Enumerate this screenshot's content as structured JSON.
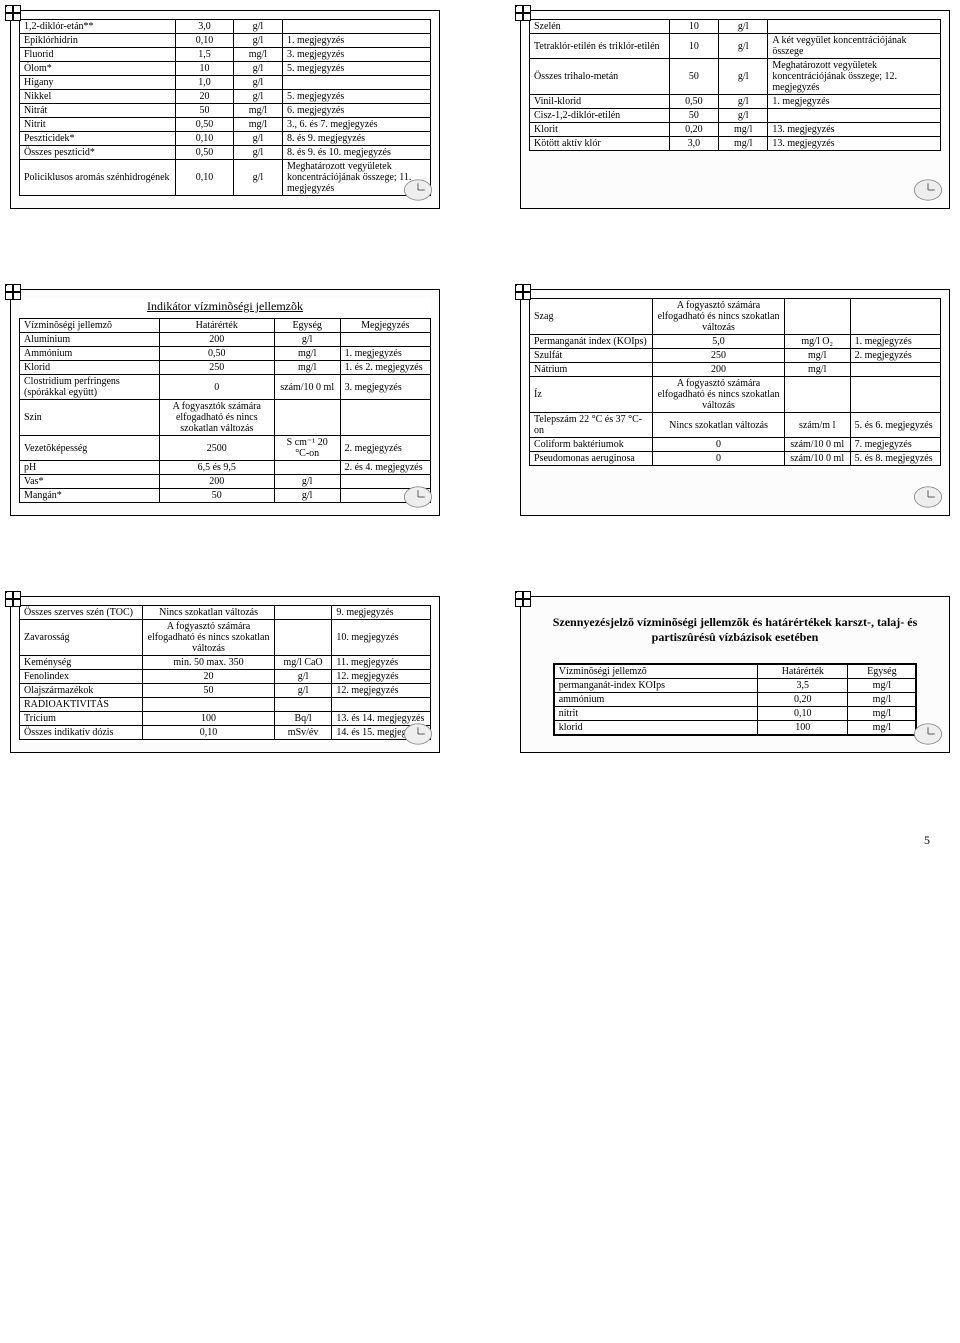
{
  "pageNumber": "5",
  "slides": {
    "s1": {
      "rows": [
        [
          "1,2-diklór-etán**",
          "3,0",
          "g/l",
          ""
        ],
        [
          "Epiklórhidrin",
          "0,10",
          "g/l",
          "1. megjegyzés"
        ],
        [
          "Fluorid",
          "1,5",
          "mg/l",
          "3. megjegyzés"
        ],
        [
          "Ólom*",
          "10",
          "g/l",
          "5. megjegyzés"
        ],
        [
          "Higany",
          "1,0",
          "g/l",
          ""
        ],
        [
          "Nikkel",
          "20",
          "g/l",
          "5. megjegyzés"
        ],
        [
          "Nitrát",
          "50",
          "mg/l",
          "6. megjegyzés"
        ],
        [
          "Nitrit",
          "0,50",
          "mg/l",
          "3., 6. és 7. megjegyzés"
        ],
        [
          "Peszticidek*",
          "0,10",
          "g/l",
          "8. és 9. megjegyzés"
        ],
        [
          "Összes peszticid*",
          "0,50",
          "g/l",
          "8. és 9. és 10. megjegyzés"
        ],
        [
          "Policiklusos aromás szénhidrogének",
          "0,10",
          "g/l",
          "Meghatározott vegyületek koncentrációjának összege; 11. megjegyzés"
        ]
      ]
    },
    "s2": {
      "rows": [
        [
          "Szelén",
          "10",
          "g/l",
          ""
        ],
        [
          "Tetraklór-etilén és triklór-etilén",
          "10",
          "g/l",
          "A két vegyület koncentrációjának összege"
        ],
        [
          "Összes trihalo-metán",
          "50",
          "g/l",
          "Meghatározott vegyületek koncentrációjának összege; 12. megjegyzés"
        ],
        [
          "Vinil-klorid",
          "0,50",
          "g/l",
          "1. megjegyzés"
        ],
        [
          "Cisz-1,2-diklór-etilén",
          "50",
          "g/l",
          ""
        ],
        [
          "Klorit",
          "0,20",
          "mg/l",
          "13. megjegyzés"
        ],
        [
          "Kötött aktív klór",
          "3,0",
          "mg/l",
          "13. megjegyzés"
        ]
      ]
    },
    "s3": {
      "title": "Indikátor vízminõségi jellemzõk",
      "header": [
        "Vízminõségi jellemzõ",
        "Határérték",
        "Egység",
        "Megjegyzés"
      ],
      "rows": [
        [
          "Alumínium",
          "200",
          "g/l",
          ""
        ],
        [
          "Ammónium",
          "0,50",
          "mg/l",
          "1. megjegyzés"
        ],
        [
          "Klorid",
          "250",
          "mg/l",
          "1. és 2. megjegyzés"
        ],
        [
          "Clostridium perfringens (spórákkal együtt)",
          "0",
          "szám/10 0 ml",
          "3. megjegyzés"
        ],
        [
          "Szín",
          "A fogyasztók számára elfogadható és nincs szokatlan változás",
          "",
          ""
        ],
        [
          "Vezetõképesség",
          "2500",
          "S cm⁻¹ 20 °C-on",
          "2. megjegyzés"
        ],
        [
          "pH",
          "6,5 és 9,5",
          "",
          "2. és 4. megjegyzés"
        ],
        [
          "Vas*",
          "200",
          "g/l",
          ""
        ],
        [
          "Mangán*",
          "50",
          "g/l",
          ""
        ]
      ]
    },
    "s4": {
      "rows": [
        [
          "Szag",
          "A fogyasztó számára elfogadható és nincs szokatlan változás",
          "",
          ""
        ],
        [
          "Permanganát index (KOIps)",
          "5,0",
          "mg/l O₂",
          "1. megjegyzés"
        ],
        [
          "Szulfát",
          "250",
          "mg/l",
          "2. megjegyzés"
        ],
        [
          "Nátrium",
          "200",
          "mg/l",
          ""
        ],
        [
          "Íz",
          "A fogyasztó számára elfogadható és nincs szokatlan változás",
          "",
          ""
        ],
        [
          "Telepszám 22 °C és 37 °C-on",
          "Nincs szokatlan változás",
          "szám/m l",
          "5. és 6. megjegyzés"
        ],
        [
          "Coliform baktériumok",
          "0",
          "szám/10 0 ml",
          "7. megjegyzés"
        ],
        [
          "Pseudomonas aeruginosa",
          "0",
          "szám/10 0 ml",
          "5. és 8. megjegyzés"
        ]
      ]
    },
    "s5": {
      "rows": [
        [
          "Összes szerves szén (TOC)",
          "Nincs szokatlan változás",
          "",
          "9. megjegyzés"
        ],
        [
          "Zavarosság",
          "A fogyasztó számára elfogadható és nincs szokatlan változás",
          "",
          "10. megjegyzés"
        ],
        [
          "Keménység",
          "min. 50 max. 350",
          "mg/l CaO",
          "11. megjegyzés"
        ],
        [
          "Fenolindex",
          "20",
          "g/l",
          "12. megjegyzés"
        ],
        [
          "Olajszármazékok",
          "50",
          "g/l",
          "12. megjegyzés"
        ],
        [
          "RADIOAKTIVITÁS",
          "",
          "",
          ""
        ],
        [
          "Trícium",
          "100",
          "Bq/l",
          "13. és 14. megjegyzés"
        ],
        [
          "Összes indikatív dózis",
          "0,10",
          "mSv/év",
          "14. és 15. megjegyzés"
        ]
      ]
    },
    "s6": {
      "heading": "Szennyezésjelzõ vízminõségi jellemzõk és határértékek karszt-, talaj- és partiszûrésû vízbázisok esetében",
      "header": [
        "Vízminõségi jellemzõ",
        "Határérték",
        "Egység"
      ],
      "rows": [
        [
          "permanganát-index KOIps",
          "3,5",
          "mg/l"
        ],
        [
          "ammónium",
          "0,20",
          "mg/l"
        ],
        [
          "nitrit",
          "0,10",
          "mg/l"
        ],
        [
          "klorid",
          "100",
          "mg/l"
        ]
      ]
    }
  }
}
